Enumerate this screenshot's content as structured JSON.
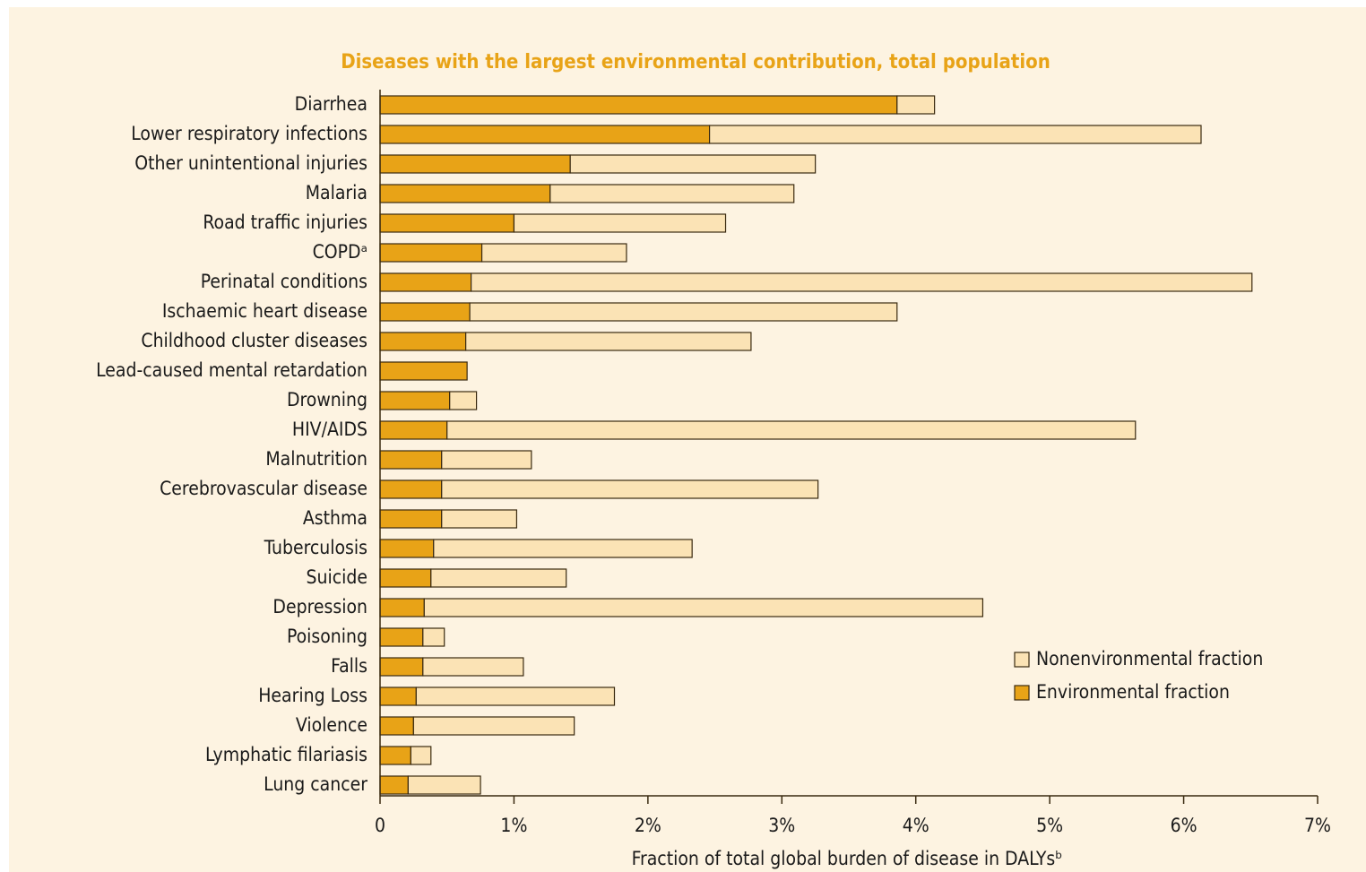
{
  "chart_data": {
    "type": "stacked_barh",
    "title": "Diseases with the largest environmental contribution, total population",
    "xlabel": "Fraction of total global burden of disease in DALYsᵇ",
    "categories": [
      "Diarrhea",
      "Lower respiratory infections",
      "Other unintentional injuries",
      "Malaria",
      "Road traffic injuries",
      "COPDᵃ",
      "Perinatal conditions",
      "Ischaemic heart disease",
      "Childhood cluster diseases",
      "Lead-caused mental retardation",
      "Drowning",
      "HIV/AIDS",
      "Malnutrition",
      "Cerebrovascular disease",
      "Asthma",
      "Tuberculosis",
      "Suicide",
      "Depression",
      "Poisoning",
      "Falls",
      "Hearing Loss",
      "Violence",
      "Lymphatic filariasis",
      "Lung cancer"
    ],
    "series": [
      {
        "name": "Environmental fraction",
        "color": "#e8a317",
        "values": [
          3.86,
          2.46,
          1.42,
          1.27,
          1.0,
          0.76,
          0.68,
          0.67,
          0.64,
          0.65,
          0.52,
          0.5,
          0.46,
          0.46,
          0.46,
          0.4,
          0.38,
          0.33,
          0.32,
          0.32,
          0.27,
          0.25,
          0.23,
          0.21
        ]
      },
      {
        "name": "Nonenvironmental fraction",
        "color": "#fbe3b5",
        "values": [
          0.28,
          3.67,
          1.83,
          1.82,
          1.58,
          1.08,
          5.83,
          3.19,
          2.13,
          0,
          0.2,
          5.14,
          0.67,
          2.81,
          0.56,
          1.93,
          1.01,
          4.17,
          0.16,
          0.75,
          1.48,
          1.2,
          0.15,
          0.54
        ]
      }
    ],
    "xlim": [
      0,
      7
    ],
    "xticks": [
      0,
      {
        "value": 1,
        "label": "1%"
      },
      {
        "value": 2,
        "label": "2%"
      },
      {
        "value": 3,
        "label": "3%"
      },
      {
        "value": 4,
        "label": "4%"
      },
      {
        "value": 5,
        "label": "5%"
      },
      {
        "value": 6,
        "label": "6%"
      },
      {
        "value": 7,
        "label": "7%"
      }
    ],
    "legend": "lower right"
  }
}
